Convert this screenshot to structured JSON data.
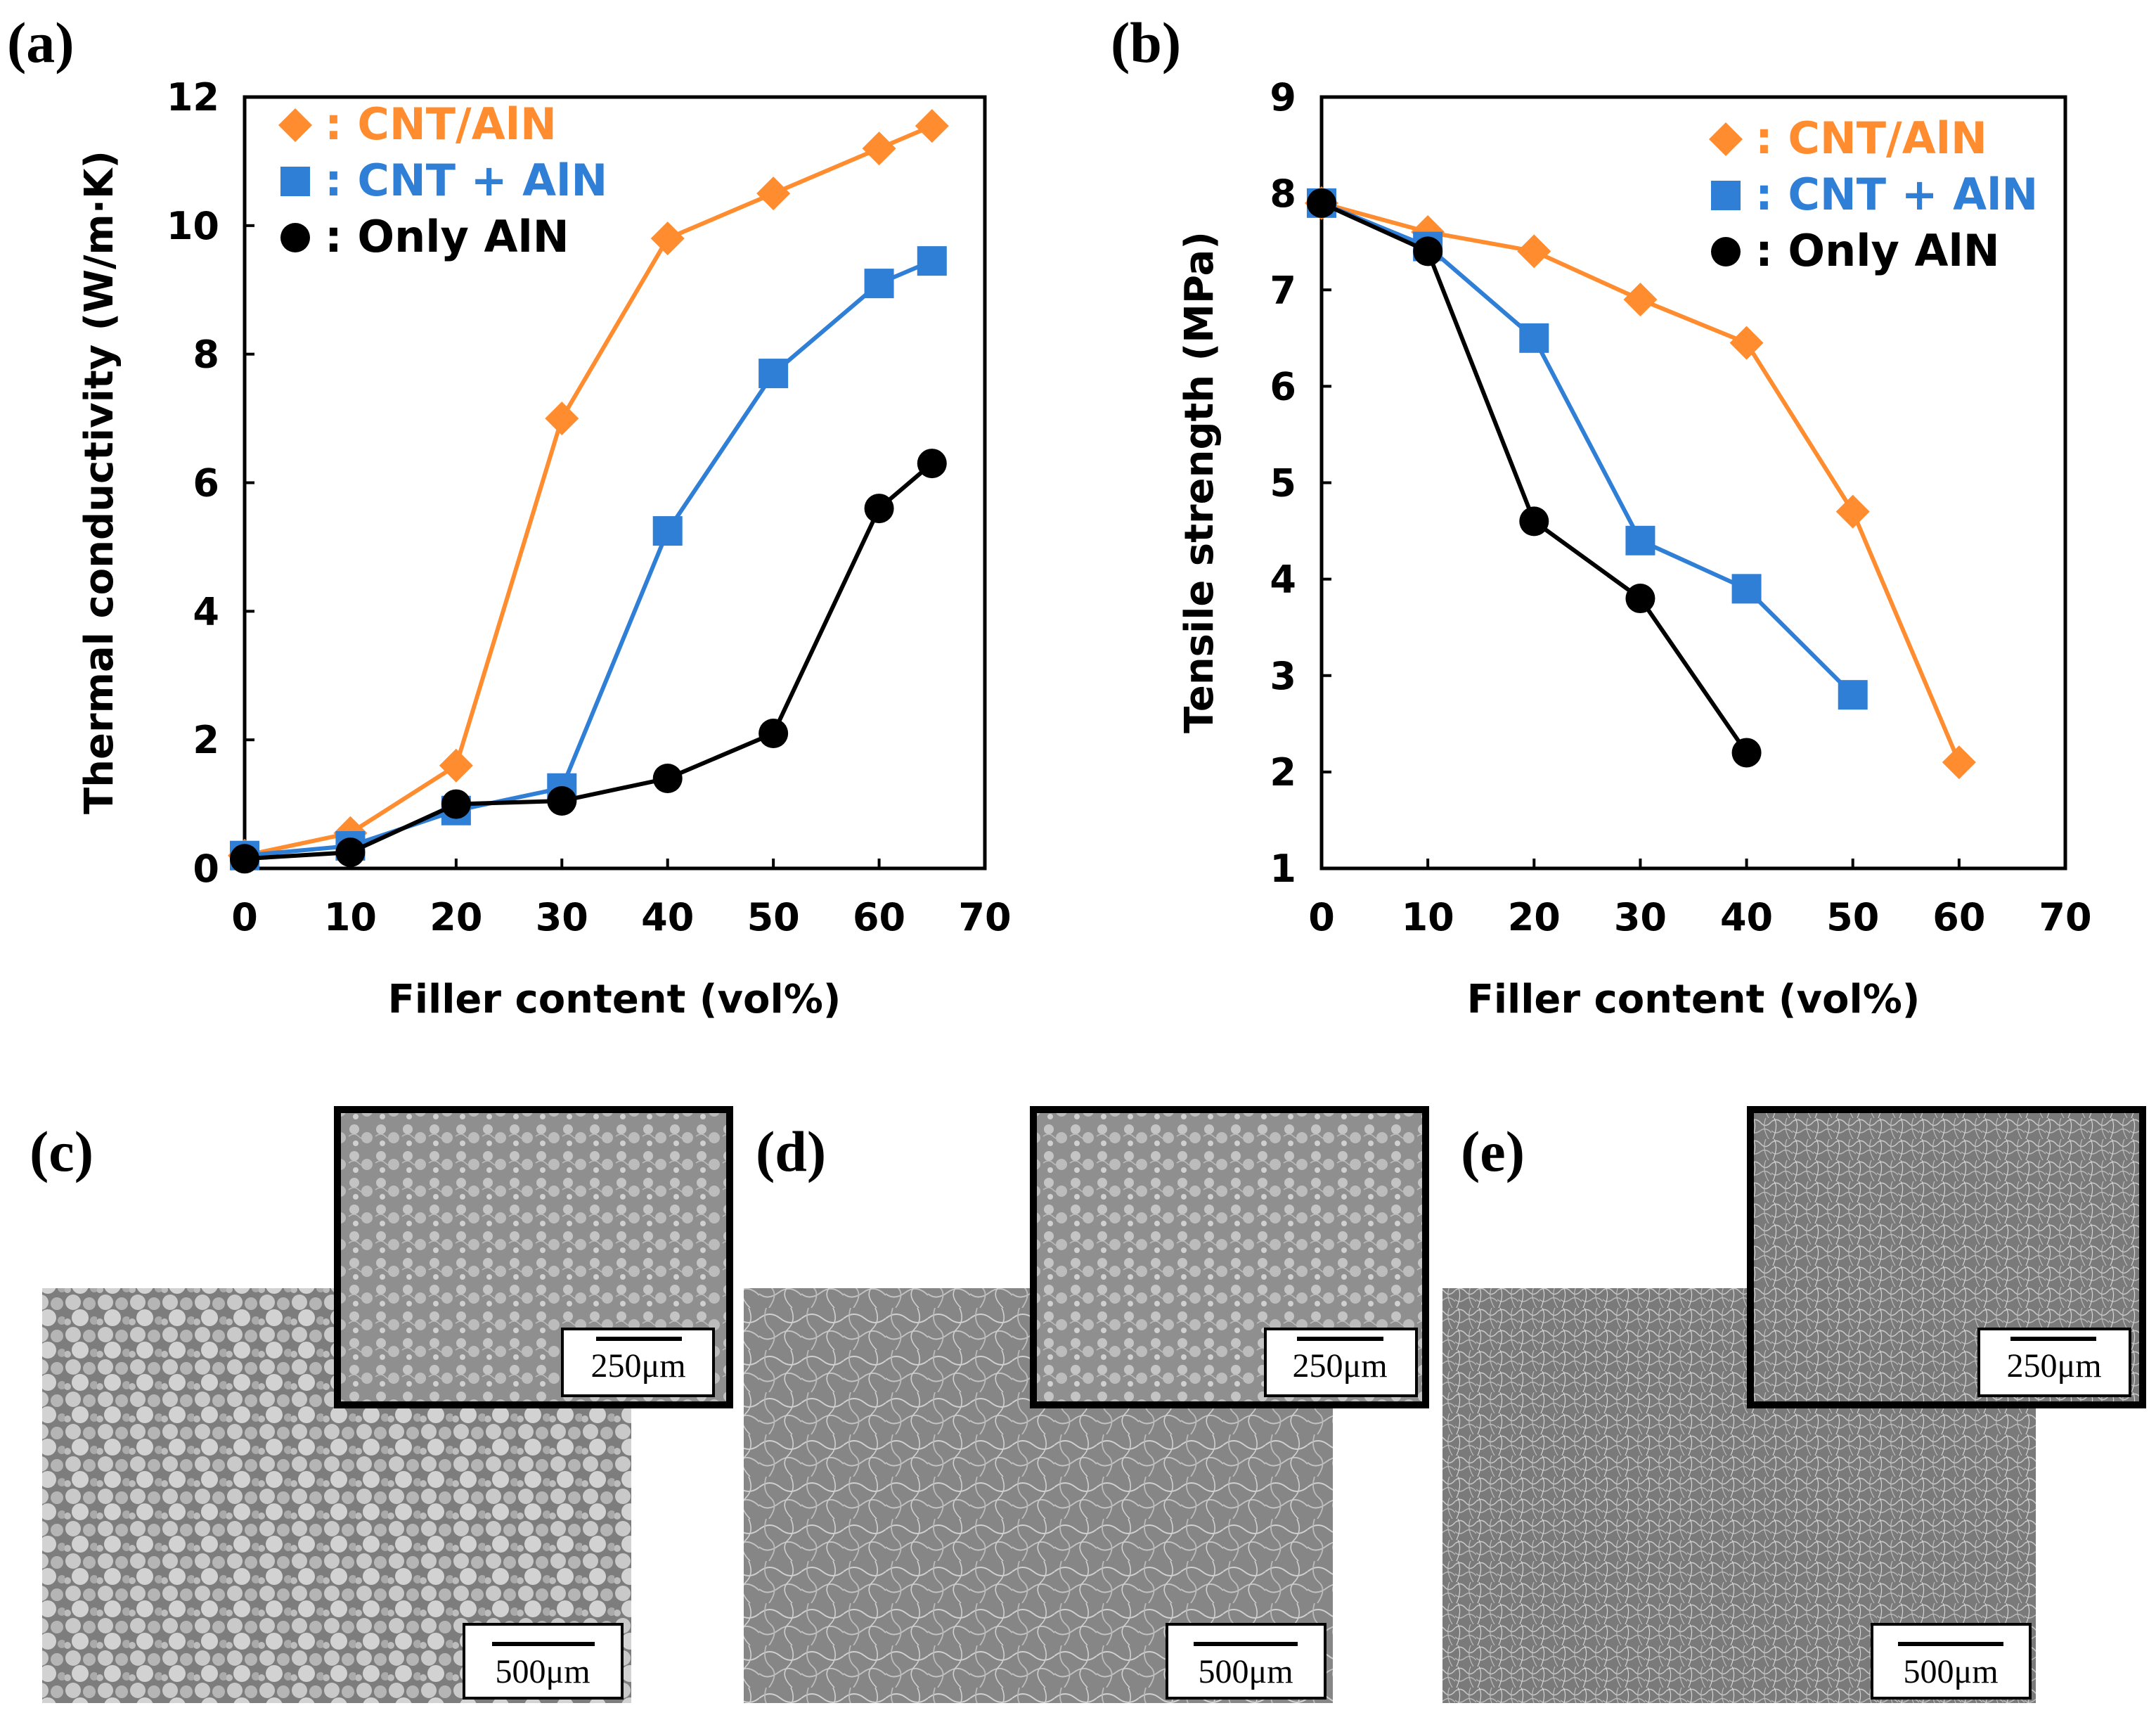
{
  "figure": {
    "panels": {
      "a": "(a)",
      "b": "(b)",
      "c": "(c)",
      "d": "(d)",
      "e": "(e)"
    }
  },
  "colors": {
    "cnt_aln": "#ff8c2e",
    "cnt_plus_aln": "#2f7fd6",
    "only_aln": "#000000",
    "sem_bg": "#8a8a8a"
  },
  "chart_data": [
    {
      "panel": "a",
      "type": "line",
      "xlabel": "Filler content (vol%)",
      "ylabel": "Thermal conductivity (W/m·K)",
      "xlim": [
        0,
        70
      ],
      "ylim": [
        0,
        12
      ],
      "xticks": [
        0,
        10,
        20,
        30,
        40,
        50,
        60,
        70
      ],
      "yticks": [
        0,
        2,
        4,
        6,
        8,
        10,
        12
      ],
      "legend_position": "top-left",
      "series": [
        {
          "name": ": CNT/AlN",
          "marker": "diamond",
          "color": "#ff8c2e",
          "x": [
            0,
            10,
            20,
            30,
            40,
            50,
            60,
            65
          ],
          "y": [
            0.2,
            0.55,
            1.6,
            7.0,
            9.8,
            10.5,
            11.2,
            11.55
          ]
        },
        {
          "name": ": CNT + AlN",
          "marker": "square",
          "color": "#2f7fd6",
          "x": [
            0,
            10,
            20,
            30,
            40,
            50,
            60,
            65
          ],
          "y": [
            0.2,
            0.35,
            0.9,
            1.25,
            5.25,
            7.7,
            9.1,
            9.45
          ]
        },
        {
          "name": ": Only AlN",
          "marker": "circle",
          "color": "#000000",
          "x": [
            0,
            10,
            20,
            30,
            40,
            50,
            60,
            65
          ],
          "y": [
            0.15,
            0.25,
            1.0,
            1.05,
            1.4,
            2.1,
            5.6,
            6.3
          ]
        }
      ]
    },
    {
      "panel": "b",
      "type": "line",
      "xlabel": "Filler content (vol%)",
      "ylabel": "Tensile strength (MPa)",
      "xlim": [
        0,
        70
      ],
      "ylim": [
        1,
        9
      ],
      "xticks": [
        0,
        10,
        20,
        30,
        40,
        50,
        60,
        70
      ],
      "yticks": [
        1,
        2,
        3,
        4,
        5,
        6,
        7,
        8,
        9
      ],
      "legend_position": "top-right",
      "series": [
        {
          "name": ": CNT/AlN",
          "marker": "diamond",
          "color": "#ff8c2e",
          "x": [
            0,
            10,
            20,
            30,
            40,
            50,
            60
          ],
          "y": [
            7.9,
            7.6,
            7.4,
            6.9,
            6.45,
            4.7,
            2.1
          ]
        },
        {
          "name": ": CNT + AlN",
          "marker": "square",
          "color": "#2f7fd6",
          "x": [
            0,
            10,
            20,
            30,
            40,
            50
          ],
          "y": [
            7.9,
            7.45,
            6.5,
            4.4,
            3.9,
            2.8
          ]
        },
        {
          "name": ": Only AlN",
          "marker": "circle",
          "color": "#000000",
          "x": [
            0,
            10,
            20,
            30,
            40
          ],
          "y": [
            7.9,
            7.4,
            4.6,
            3.8,
            2.2
          ]
        }
      ]
    }
  ],
  "micrographs": {
    "c": {
      "main_scale": "500μm",
      "inset_scale": "250μm"
    },
    "d": {
      "main_scale": "500μm",
      "inset_scale": "250μm"
    },
    "e": {
      "main_scale": "500μm",
      "inset_scale": "250μm"
    }
  }
}
